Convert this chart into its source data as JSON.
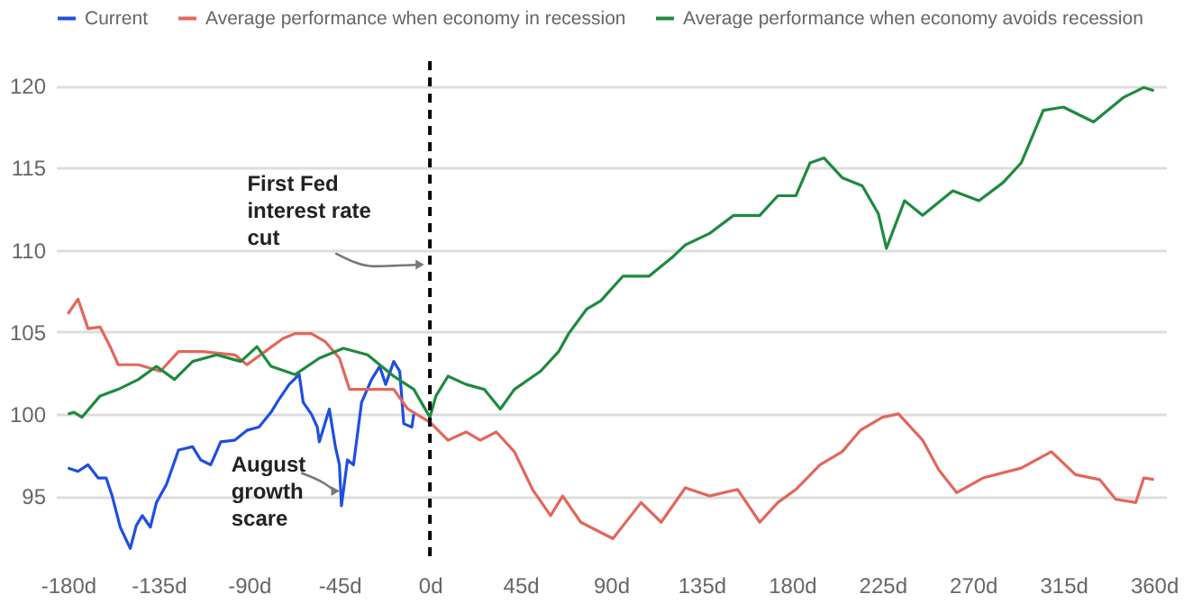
{
  "chart_data": {
    "type": "line",
    "xlim": [
      -186,
      366
    ],
    "ylim": [
      91,
      121.5
    ],
    "xticks": [
      {
        "value": -180,
        "label": "-180d"
      },
      {
        "value": -135,
        "label": "-135d"
      },
      {
        "value": -90,
        "label": "-90d"
      },
      {
        "value": -45,
        "label": "-45d"
      },
      {
        "value": 0,
        "label": "0d"
      },
      {
        "value": 45,
        "label": "45d"
      },
      {
        "value": 90,
        "label": "90d"
      },
      {
        "value": 135,
        "label": "135d"
      },
      {
        "value": 180,
        "label": "180d"
      },
      {
        "value": 225,
        "label": "225d"
      },
      {
        "value": 270,
        "label": "270d"
      },
      {
        "value": 315,
        "label": "315d"
      },
      {
        "value": 360,
        "label": "360d"
      }
    ],
    "yticks": [
      95,
      100,
      105,
      110,
      115,
      120
    ],
    "grid": "y",
    "legend": "top left",
    "line_style": "solid",
    "marker": "none",
    "series": [
      {
        "name": "Current",
        "color": "#1f4fdf",
        "x": [
          -180,
          -175,
          -170,
          -165,
          -161,
          -158,
          -154,
          -149,
          -146,
          -143,
          -139,
          -136,
          -131,
          -125,
          -118,
          -114,
          -109,
          -104,
          -97,
          -91,
          -85,
          -79,
          -75,
          -70,
          -65,
          -63,
          -59,
          -56,
          -55,
          -50,
          -47,
          -45,
          -44,
          -41,
          -38,
          -34,
          -29,
          -25,
          -22,
          -18,
          -15,
          -13,
          -9,
          -8
        ],
        "values": [
          96.7,
          96.5,
          96.9,
          96.1,
          96.1,
          95,
          93.1,
          91.8,
          93.2,
          93.8,
          93.1,
          94.6,
          95.7,
          97.8,
          98,
          97.2,
          96.9,
          98.3,
          98.4,
          99,
          99.2,
          100.1,
          100.9,
          101.8,
          102.4,
          100.7,
          100,
          99.2,
          98.3,
          100.3,
          98,
          96.9,
          94.4,
          97.2,
          96.9,
          100.7,
          102.1,
          102.9,
          101.8,
          103.2,
          102.6,
          99.4,
          99.2,
          100
        ]
      },
      {
        "name": "Average performance when economy in recession",
        "color": "#e2675b",
        "x": [
          -180,
          -175,
          -170,
          -164,
          -159,
          -155,
          -145,
          -134,
          -125,
          -113,
          -97,
          -91,
          -82,
          -73,
          -67,
          -59,
          -52,
          -45,
          -40,
          -31,
          -18,
          -11,
          0,
          9,
          18,
          25,
          33,
          42,
          51,
          60,
          66,
          75,
          91,
          105,
          115,
          127,
          139,
          153,
          164,
          173,
          182,
          194,
          205,
          214,
          225,
          233,
          245,
          253,
          262,
          275,
          294,
          309,
          321,
          333,
          341,
          351,
          355,
          360
        ],
        "values": [
          106.1,
          107,
          105.2,
          105.3,
          104.1,
          103,
          103,
          102.6,
          103.8,
          103.8,
          103.6,
          103,
          103.8,
          104.6,
          104.9,
          104.9,
          104.4,
          103.4,
          101.5,
          101.5,
          101.5,
          100.3,
          99.5,
          98.4,
          98.9,
          98.4,
          98.9,
          97.7,
          95.4,
          93.8,
          95,
          93.4,
          92.4,
          94.6,
          93.4,
          95.5,
          95,
          95.4,
          93.4,
          94.6,
          95.4,
          96.9,
          97.7,
          99,
          99.8,
          100,
          98.4,
          96.6,
          95.2,
          96.1,
          96.7,
          97.7,
          96.3,
          96,
          94.8,
          94.6,
          96.1,
          96
        ]
      },
      {
        "name": "Average performance when economy avoids recession",
        "color": "#1e8a3f",
        "x": [
          -180,
          -177,
          -173,
          -164,
          -155,
          -145,
          -136,
          -127,
          -118,
          -106,
          -94,
          -86,
          -79,
          -67,
          -55,
          -43,
          -31,
          -18,
          -8,
          0,
          3,
          9,
          18,
          27,
          35,
          42,
          55,
          64,
          69,
          78,
          85,
          96,
          109,
          121,
          127,
          139,
          151,
          164,
          173,
          182,
          189,
          196,
          205,
          215,
          223,
          227,
          236,
          245,
          260,
          273,
          285,
          294,
          305,
          315,
          330,
          345,
          355,
          360
        ],
        "values": [
          100,
          100.1,
          99.8,
          101.1,
          101.5,
          102.1,
          102.9,
          102.1,
          103.2,
          103.6,
          103.2,
          104.1,
          102.9,
          102.4,
          103.4,
          104,
          103.6,
          102.3,
          101.5,
          99.8,
          101.1,
          102.3,
          101.8,
          101.5,
          100.3,
          101.5,
          102.6,
          103.8,
          104.9,
          106.4,
          106.9,
          108.4,
          108.4,
          109.6,
          110.3,
          111,
          112.1,
          112.1,
          113.3,
          113.3,
          115.3,
          115.6,
          114.4,
          113.9,
          112.2,
          110.1,
          113,
          112.1,
          113.6,
          113,
          114.1,
          115.3,
          118.5,
          118.7,
          117.8,
          119.3,
          119.9,
          119.7
        ]
      }
    ],
    "ref_lines": [
      {
        "axis": "x",
        "value": 0,
        "color": "#000000",
        "line_style": "dashed"
      }
    ],
    "annotations": [
      {
        "text": "First Fed\ninterest rate\ncut",
        "x": -3,
        "y": 109.1
      },
      {
        "text": "August\ngrowth\nscare",
        "x": -45,
        "y": 95.3
      }
    ]
  }
}
